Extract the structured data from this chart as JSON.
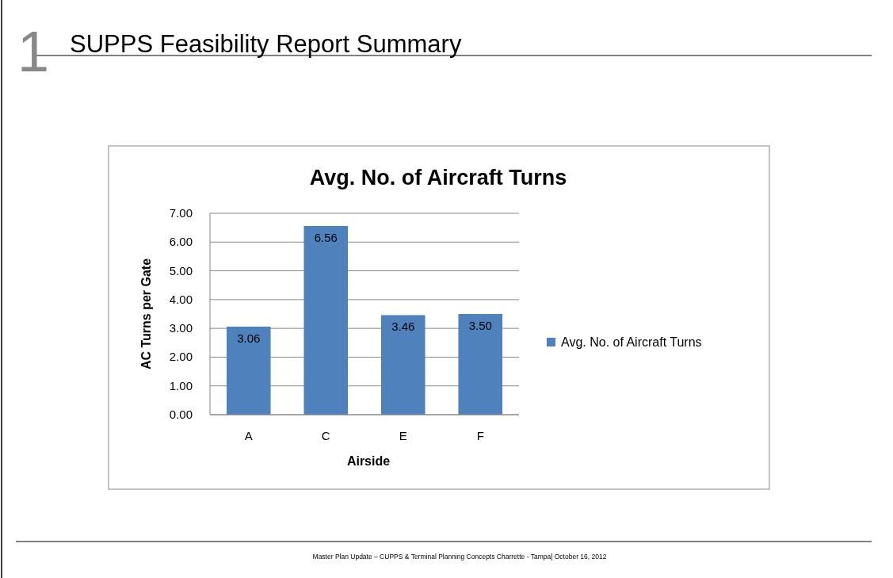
{
  "chart_data": {
    "type": "bar",
    "title": "Avg. No. of Aircraft Turns",
    "xlabel": "Airside",
    "ylabel": "AC Turns per Gate",
    "categories": [
      "A",
      "C",
      "E",
      "F"
    ],
    "series": [
      {
        "name": "Avg. No. of Aircraft Turns",
        "color": "#4f81bd",
        "values": [
          3.06,
          6.56,
          3.46,
          3.5
        ],
        "value_labels": [
          "3.06",
          "6.56",
          "3.46",
          "3.50"
        ]
      }
    ],
    "ylim": [
      0,
      7
    ],
    "yticks": [
      {
        "value": 0,
        "label": "0.00"
      },
      {
        "value": 1,
        "label": "1.00"
      },
      {
        "value": 2,
        "label": "2.00"
      },
      {
        "value": 3,
        "label": "3.00"
      },
      {
        "value": 4,
        "label": "4.00"
      },
      {
        "value": 5,
        "label": "5.00"
      },
      {
        "value": 6,
        "label": "6.00"
      },
      {
        "value": 7,
        "label": "7.00"
      }
    ],
    "grid": "y",
    "legend": "right",
    "annotations": [
      "1",
      "SUPPS Feasibility Report Summary",
      "Master Plan Update – CUPPS & Terminal Planning Concepts Charrette - Tampa| October 16, 2012"
    ]
  }
}
